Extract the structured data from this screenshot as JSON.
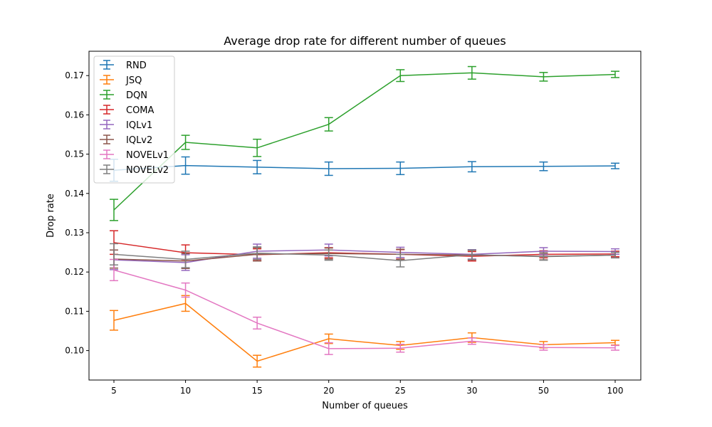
{
  "chart_data": {
    "type": "line",
    "title": "Average drop rate for different number of queues",
    "xlabel": "Number of queues",
    "ylabel": "Drop rate",
    "categories": [
      "5",
      "10",
      "15",
      "20",
      "25",
      "30",
      "50",
      "100"
    ],
    "ylim": [
      0.0925,
      0.1762
    ],
    "yticks": [
      0.1,
      0.11,
      0.12,
      0.13,
      0.14,
      0.15,
      0.16,
      0.17
    ],
    "ytick_labels": [
      "0.10",
      "0.11",
      "0.12",
      "0.13",
      "0.14",
      "0.15",
      "0.16",
      "0.17"
    ],
    "grid": false,
    "legend_position": "top-left",
    "series": [
      {
        "name": "RND",
        "color": "#1f77b4",
        "values": [
          0.1459,
          0.1471,
          0.1467,
          0.1463,
          0.1464,
          0.1468,
          0.1469,
          0.147
        ],
        "errors": [
          0.0028,
          0.0022,
          0.0017,
          0.0017,
          0.0016,
          0.0013,
          0.0011,
          0.0007
        ]
      },
      {
        "name": "JSQ",
        "color": "#ff7f0e",
        "values": [
          0.1077,
          0.112,
          0.0973,
          0.103,
          0.1013,
          0.1033,
          0.1015,
          0.102
        ],
        "errors": [
          0.0025,
          0.002,
          0.0015,
          0.0012,
          0.001,
          0.0012,
          0.0008,
          0.0006
        ]
      },
      {
        "name": "DQN",
        "color": "#2ca02c",
        "values": [
          0.1358,
          0.153,
          0.1516,
          0.1576,
          0.17,
          0.1707,
          0.1697,
          0.1703
        ],
        "errors": [
          0.0027,
          0.0018,
          0.0022,
          0.0017,
          0.0015,
          0.0016,
          0.0011,
          0.0008
        ]
      },
      {
        "name": "COMA",
        "color": "#d62728",
        "values": [
          0.1275,
          0.1249,
          0.1244,
          0.1249,
          0.1245,
          0.124,
          0.1245,
          0.1246
        ],
        "errors": [
          0.003,
          0.002,
          0.0015,
          0.0013,
          0.0012,
          0.0012,
          0.0009,
          0.0007
        ]
      },
      {
        "name": "IQLv1",
        "color": "#9467bd",
        "values": [
          0.1231,
          0.1224,
          0.1253,
          0.1256,
          0.125,
          0.1245,
          0.1253,
          0.1252
        ],
        "errors": [
          0.0025,
          0.002,
          0.0018,
          0.0015,
          0.0013,
          0.0012,
          0.0009,
          0.0007
        ]
      },
      {
        "name": "IQLv2",
        "color": "#8c564b",
        "values": [
          0.1233,
          0.1228,
          0.1245,
          0.1247,
          0.1245,
          0.1243,
          0.124,
          0.1243
        ],
        "errors": [
          0.0023,
          0.0019,
          0.0017,
          0.0014,
          0.0013,
          0.0012,
          0.0009,
          0.0007
        ]
      },
      {
        "name": "NOVELv1",
        "color": "#e377c2",
        "values": [
          0.1205,
          0.1154,
          0.107,
          0.1005,
          0.1006,
          0.1024,
          0.1008,
          0.1007
        ],
        "errors": [
          0.0027,
          0.0018,
          0.0015,
          0.0015,
          0.001,
          0.0008,
          0.0007,
          0.0006
        ]
      },
      {
        "name": "NOVELv2",
        "color": "#7f7f7f",
        "values": [
          0.1245,
          0.1232,
          0.1248,
          0.1243,
          0.1229,
          0.1244,
          0.1239,
          0.1243
        ],
        "errors": [
          0.0027,
          0.0021,
          0.0016,
          0.0013,
          0.0016,
          0.0012,
          0.0009,
          0.0007
        ]
      }
    ]
  }
}
